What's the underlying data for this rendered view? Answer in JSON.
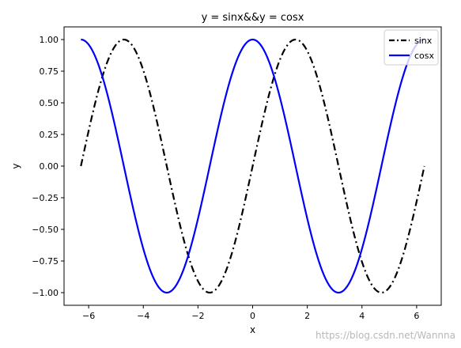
{
  "chart_data": {
    "type": "line",
    "title": "y = sinx&&y = cosx",
    "xlabel": "x",
    "ylabel": "y",
    "xlim": [
      -6.9,
      6.9
    ],
    "ylim": [
      -1.1,
      1.1
    ],
    "x_range": [
      -6.2832,
      6.2832
    ],
    "xticks": [
      -6,
      -4,
      -2,
      0,
      2,
      4,
      6
    ],
    "xtick_labels": [
      "−6",
      "−4",
      "−2",
      "0",
      "2",
      "4",
      "6"
    ],
    "yticks": [
      -1.0,
      -0.75,
      -0.5,
      -0.25,
      0.0,
      0.25,
      0.5,
      0.75,
      1.0
    ],
    "ytick_labels": [
      "−1.00",
      "−0.75",
      "−0.50",
      "−0.25",
      "0.00",
      "0.25",
      "0.50",
      "0.75",
      "1.00"
    ],
    "grid": false,
    "legend_position": "top-right",
    "series": [
      {
        "name": "sinx",
        "function": "sin",
        "color": "#000000",
        "style": "dash-dot",
        "points": [
          [
            -6.2832,
            0.0
          ],
          [
            -5.4978,
            0.7071
          ],
          [
            -4.7124,
            1.0
          ],
          [
            -3.927,
            0.7071
          ],
          [
            -3.1416,
            0.0
          ],
          [
            -2.3562,
            -0.7071
          ],
          [
            -1.5708,
            -1.0
          ],
          [
            -0.7854,
            -0.7071
          ],
          [
            0.0,
            0.0
          ],
          [
            0.7854,
            0.7071
          ],
          [
            1.5708,
            1.0
          ],
          [
            2.3562,
            0.7071
          ],
          [
            3.1416,
            0.0
          ],
          [
            3.927,
            -0.7071
          ],
          [
            4.7124,
            -1.0
          ],
          [
            5.4978,
            -0.7071
          ],
          [
            6.2832,
            0.0
          ]
        ]
      },
      {
        "name": "cosx",
        "function": "cos",
        "color": "#0000ff",
        "style": "solid",
        "points": [
          [
            -6.2832,
            1.0
          ],
          [
            -5.4978,
            0.7071
          ],
          [
            -4.7124,
            0.0
          ],
          [
            -3.927,
            -0.7071
          ],
          [
            -3.1416,
            -1.0
          ],
          [
            -2.3562,
            -0.7071
          ],
          [
            -1.5708,
            0.0
          ],
          [
            -0.7854,
            0.7071
          ],
          [
            0.0,
            1.0
          ],
          [
            0.7854,
            0.7071
          ],
          [
            1.5708,
            0.0
          ],
          [
            2.3562,
            -0.7071
          ],
          [
            3.1416,
            -1.0
          ],
          [
            3.927,
            -0.7071
          ],
          [
            4.7124,
            0.0
          ],
          [
            5.4978,
            0.7071
          ],
          [
            6.2832,
            1.0
          ]
        ]
      }
    ]
  },
  "watermark": "https://blog.csdn.net/Wannna"
}
